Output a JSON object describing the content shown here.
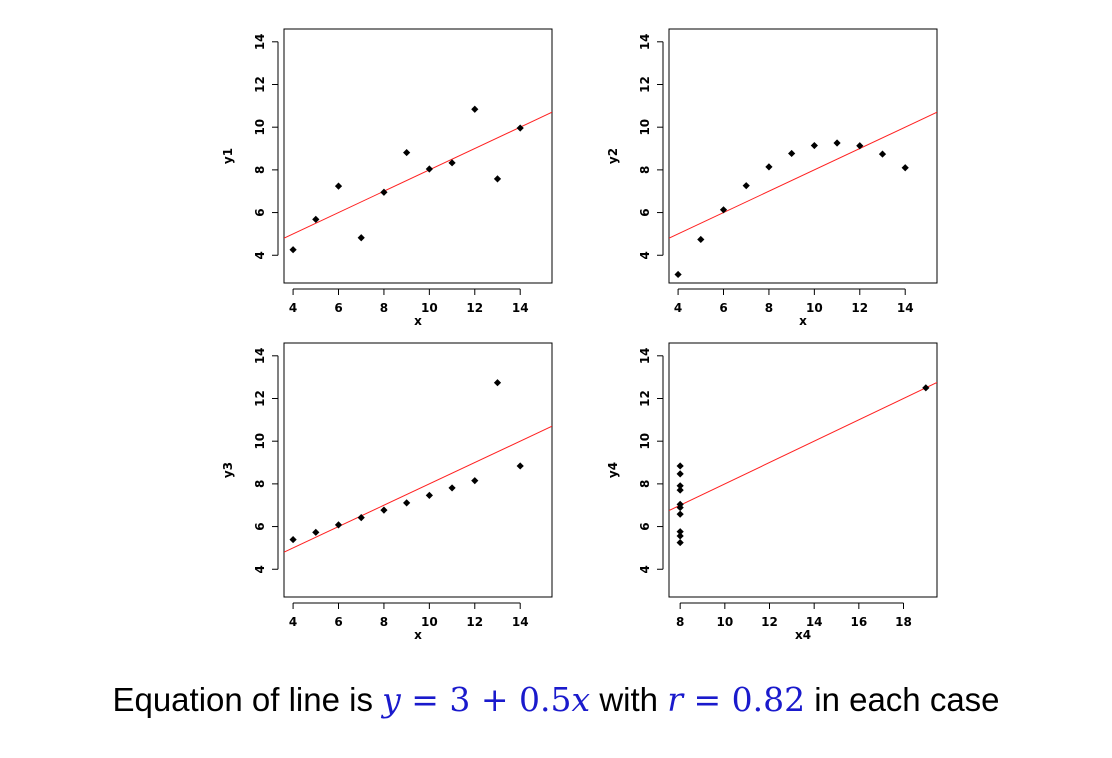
{
  "chart_data": [
    {
      "type": "scatter",
      "xlabel": "x",
      "ylabel": "y1",
      "xticks": [
        4,
        6,
        8,
        10,
        12,
        14
      ],
      "yticks": [
        4,
        6,
        8,
        10,
        12,
        14
      ],
      "xlim": [
        3.6,
        15.4
      ],
      "ylim": [
        2.7,
        14.6
      ],
      "x": [
        4,
        5,
        6,
        7,
        8,
        9,
        10,
        11,
        12,
        13,
        14
      ],
      "y": [
        4.26,
        5.68,
        7.24,
        4.82,
        6.95,
        8.81,
        8.04,
        8.33,
        10.84,
        7.58,
        9.96
      ],
      "fit_line": {
        "intercept": 3,
        "slope": 0.5,
        "color": "#ff2020"
      },
      "point_color": "#000000"
    },
    {
      "type": "scatter",
      "xlabel": "x",
      "ylabel": "y2",
      "xticks": [
        4,
        6,
        8,
        10,
        12,
        14
      ],
      "yticks": [
        4,
        6,
        8,
        10,
        12,
        14
      ],
      "xlim": [
        3.6,
        15.4
      ],
      "ylim": [
        2.7,
        14.6
      ],
      "x": [
        4,
        5,
        6,
        7,
        8,
        9,
        10,
        11,
        12,
        13,
        14
      ],
      "y": [
        3.1,
        4.74,
        6.13,
        7.26,
        8.14,
        8.77,
        9.14,
        9.26,
        9.13,
        8.74,
        8.1
      ],
      "fit_line": {
        "intercept": 3,
        "slope": 0.5,
        "color": "#ff2020"
      },
      "point_color": "#000000"
    },
    {
      "type": "scatter",
      "xlabel": "x",
      "ylabel": "y3",
      "xticks": [
        4,
        6,
        8,
        10,
        12,
        14
      ],
      "yticks": [
        4,
        6,
        8,
        10,
        12,
        14
      ],
      "xlim": [
        3.6,
        15.4
      ],
      "ylim": [
        2.7,
        14.6
      ],
      "x": [
        4,
        5,
        6,
        7,
        8,
        9,
        10,
        11,
        12,
        13,
        14
      ],
      "y": [
        5.39,
        5.73,
        6.08,
        6.42,
        6.77,
        7.11,
        7.46,
        7.81,
        8.15,
        12.74,
        8.84
      ],
      "fit_line": {
        "intercept": 3,
        "slope": 0.5,
        "color": "#ff2020"
      },
      "point_color": "#000000"
    },
    {
      "type": "scatter",
      "xlabel": "x4",
      "ylabel": "y4",
      "xticks": [
        8,
        10,
        12,
        14,
        16,
        18
      ],
      "yticks": [
        4,
        6,
        8,
        10,
        12,
        14
      ],
      "xlim": [
        7.5,
        19.5
      ],
      "ylim": [
        2.7,
        14.6
      ],
      "x": [
        8,
        8,
        8,
        8,
        8,
        8,
        8,
        8,
        8,
        8,
        19
      ],
      "y": [
        6.58,
        5.76,
        7.71,
        8.84,
        8.47,
        7.04,
        5.25,
        5.56,
        7.91,
        6.89,
        12.5
      ],
      "fit_line": {
        "intercept": 3,
        "slope": 0.5,
        "color": "#ff2020"
      },
      "point_color": "#000000"
    }
  ],
  "caption": {
    "prefix": "Equation of line is ",
    "eq_y": "y",
    "eq_rest": " = 3 + 0.5",
    "eq_x": "x",
    "middle": " with ",
    "r_var": "r",
    "r_rest": " = 0.82",
    "suffix": " in each case",
    "math_color": "#1a1acc"
  }
}
